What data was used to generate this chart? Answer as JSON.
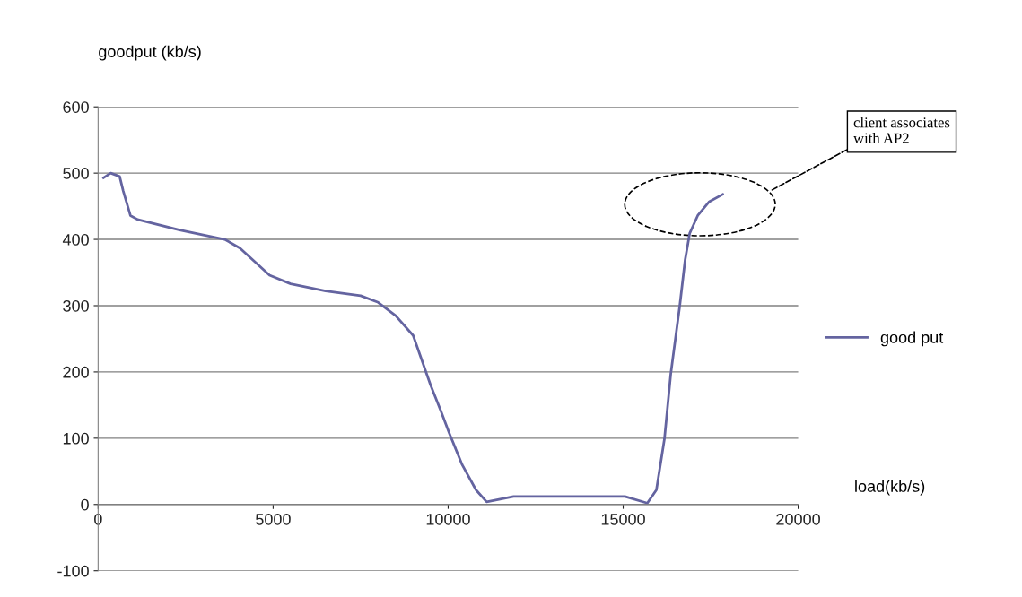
{
  "chart_data": {
    "type": "line",
    "xlabel": "load(kb/s)",
    "ylabel": "goodput (kb/s)",
    "xlim": [
      0,
      20000
    ],
    "xticks": [
      0,
      5000,
      10000,
      15000,
      20000
    ],
    "ylim": [
      -100,
      600
    ],
    "yticks": [
      -100,
      0,
      100,
      200,
      300,
      400,
      500,
      600
    ],
    "grid": "y",
    "legend": "right",
    "line_style": "solid",
    "marker": "none",
    "annotations": [
      "client associates\nwith AP2"
    ],
    "series": [
      {
        "name": "good put",
        "color": "#6464a0",
        "x": [
          154,
          360,
          615,
          718,
          923,
          1128,
          2333,
          3615,
          4050,
          4897,
          5500,
          6500,
          7500,
          8000,
          8500,
          9000,
          9500,
          9800,
          10030,
          10400,
          10795,
          11100,
          11870,
          15050,
          15690,
          15950,
          16180,
          16360,
          16615,
          16770,
          16900,
          17130,
          17460,
          17845
        ],
        "values": [
          493,
          500,
          495,
          473,
          436,
          430,
          414,
          400,
          387,
          346,
          333,
          322,
          315,
          305,
          285,
          255,
          180,
          140,
          108,
          60,
          22,
          4,
          12,
          12,
          2,
          22,
          99,
          197,
          299,
          369,
          409,
          436,
          457,
          468
        ]
      }
    ]
  }
}
